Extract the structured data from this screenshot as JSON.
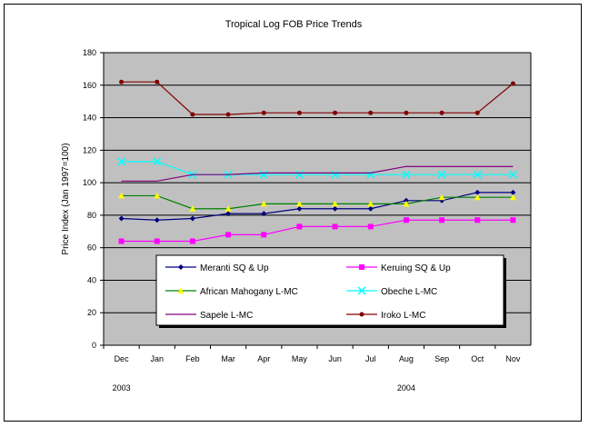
{
  "chart_data": {
    "type": "line",
    "title": "Tropical Log FOB Price Trends",
    "ylabel": "Price Index (Jan 1997=100)",
    "xlabel": "",
    "ylim": [
      0,
      180
    ],
    "yticks": [
      0,
      20,
      40,
      60,
      80,
      100,
      120,
      140,
      160,
      180
    ],
    "categories": [
      "Dec",
      "Jan",
      "Feb",
      "Mar",
      "Apr",
      "May",
      "Jun",
      "Jul",
      "Aug",
      "Sep",
      "Oct",
      "Nov"
    ],
    "year_labels": [
      {
        "text": "2003",
        "category": "Dec"
      },
      {
        "text": "2004",
        "category": "Aug"
      }
    ],
    "grid": "horizontal",
    "plot_background": "#c0c0c0",
    "legend_position": "bottom-center",
    "series": [
      {
        "name": "Meranti SQ & Up",
        "color": "#000080",
        "marker": "diamond",
        "values": [
          78,
          77,
          78,
          81,
          81,
          84,
          84,
          84,
          89,
          89,
          94,
          94
        ]
      },
      {
        "name": "Keruing SQ & Up",
        "color": "#ff00ff",
        "marker": "square",
        "values": [
          64,
          64,
          64,
          68,
          68,
          73,
          73,
          73,
          77,
          77,
          77,
          77
        ]
      },
      {
        "name": "African Mahogany L-MC",
        "color": "#008000",
        "marker": "triangle",
        "marker_color": "#ffff00",
        "values": [
          92,
          92,
          84,
          84,
          87,
          87,
          87,
          87,
          87,
          91,
          91,
          91
        ]
      },
      {
        "name": "Obeche L-MC",
        "color": "#00ffff",
        "marker": "x",
        "values": [
          113,
          113,
          105,
          105,
          105,
          105,
          105,
          105,
          105,
          105,
          105,
          105
        ]
      },
      {
        "name": "Sapele L-MC",
        "color": "#800080",
        "marker": "none",
        "values": [
          101,
          101,
          105,
          105,
          106,
          106,
          106,
          106,
          110,
          110,
          110,
          110
        ]
      },
      {
        "name": "Iroko L-MC",
        "color": "#800000",
        "marker": "circle",
        "values": [
          162,
          162,
          142,
          142,
          143,
          143,
          143,
          143,
          143,
          143,
          143,
          161
        ]
      }
    ]
  }
}
